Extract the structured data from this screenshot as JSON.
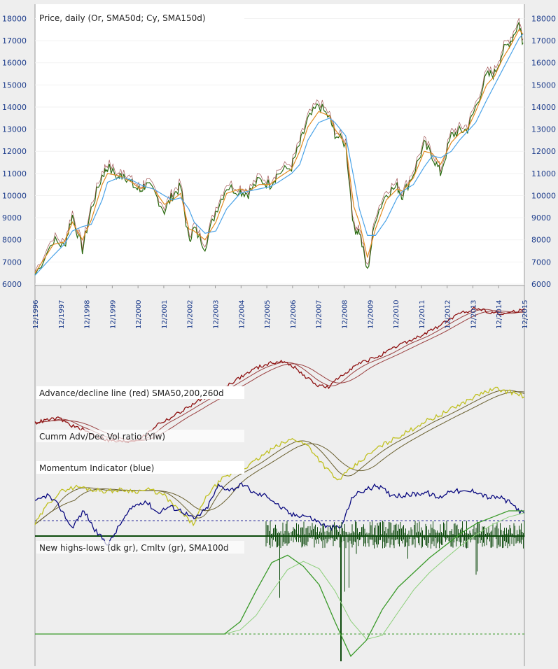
{
  "chart_data": {
    "type": "line",
    "panels": [
      {
        "id": "price",
        "title": "Price, daily (Or, SMA50d; Cy, SMA150d)",
        "yticks": [
          "6000",
          "7000",
          "8000",
          "9000",
          "10000",
          "11000",
          "12000",
          "13000",
          "14000",
          "15000",
          "16000",
          "17000",
          "18000"
        ],
        "ylim": [
          6000,
          18300
        ],
        "x": [
          1996.92,
          1997.6,
          1998.0,
          1998.3,
          1998.67,
          1999.0,
          1999.4,
          1999.6,
          2000.0,
          2000.2,
          2000.5,
          2000.8,
          2001.0,
          2001.3,
          2001.7,
          2002.0,
          2002.3,
          2002.6,
          2002.8,
          2003.2,
          2003.6,
          2004.0,
          2004.5,
          2004.8,
          2005.2,
          2005.6,
          2005.9,
          2006.4,
          2006.7,
          2007.0,
          2007.4,
          2007.8,
          2008.0,
          2008.4,
          2008.7,
          2008.9,
          2009.2,
          2009.5,
          2009.9,
          2010.3,
          2010.5,
          2010.9,
          2011.3,
          2011.6,
          2011.9,
          2012.3,
          2012.6,
          2012.9,
          2013.2,
          2013.6,
          2013.9,
          2014.2,
          2014.5,
          2014.8,
          2014.95
        ],
        "series": [
          {
            "name": "Price",
            "color": "#2a6a10",
            "values": [
              6400,
              8000,
              7700,
              9100,
              7550,
              9400,
              10900,
              11300,
              10800,
              11000,
              10500,
              10200,
              10500,
              10200,
              9300,
              10000,
              10400,
              8000,
              8500,
              7700,
              9300,
              10400,
              10200,
              10100,
              10700,
              10500,
              11000,
              11300,
              12300,
              13400,
              14100,
              13500,
              12800,
              12300,
              8500,
              8400,
              6550,
              9000,
              10100,
              10400,
              10000,
              11000,
              12300,
              11800,
              11000,
              12700,
              12900,
              13000,
              14000,
              15400,
              15500,
              16500,
              17000,
              17800,
              16900
            ]
          },
          {
            "name": "SMA50d",
            "color": "#e08a20",
            "values": [
              6500,
              7800,
              7900,
              8800,
              8000,
              8900,
              10500,
              11000,
              10900,
              10800,
              10600,
              10300,
              10400,
              10300,
              9600,
              9800,
              10100,
              8500,
              8400,
              8000,
              8800,
              10100,
              10300,
              10200,
              10500,
              10500,
              10800,
              11200,
              12000,
              13100,
              13800,
              13600,
              13000,
              12300,
              9500,
              8800,
              7200,
              8500,
              9800,
              10300,
              10200,
              10800,
              12000,
              11900,
              11400,
              12400,
              12800,
              13000,
              13800,
              15000,
              15400,
              16200,
              16800,
              17500,
              17300
            ]
          },
          {
            "name": "SMA150d",
            "color": "#4aa3e8",
            "values": [
              6400,
              7300,
              7800,
              8400,
              8600,
              8700,
              9800,
              10600,
              10800,
              10800,
              10700,
              10500,
              10400,
              10300,
              10000,
              9800,
              9900,
              9400,
              8800,
              8300,
              8400,
              9400,
              10100,
              10200,
              10300,
              10400,
              10600,
              11000,
              11400,
              12500,
              13300,
              13500,
              13300,
              12700,
              10800,
              9400,
              8200,
              8200,
              8900,
              9900,
              10200,
              10500,
              11300,
              11800,
              11700,
              12000,
              12500,
              12900,
              13300,
              14300,
              15000,
              15700,
              16400,
              17100,
              17300
            ]
          }
        ]
      },
      {
        "id": "adline",
        "title": "Advance/decline line (red) SMA50,200,260d",
        "series": [
          {
            "name": "A/D line",
            "color": "#8e1010",
            "values": [
              0.18,
              0.2,
              0.21,
              0.16,
              0.13,
              0.09,
              0.06,
              0.05,
              0.06,
              0.09,
              0.17,
              0.21,
              0.26,
              0.31,
              0.36,
              0.4,
              0.45,
              0.5,
              0.55,
              0.58,
              0.6,
              0.57,
              0.5,
              0.44,
              0.42,
              0.5,
              0.56,
              0.6,
              0.63,
              0.67,
              0.72,
              0.75,
              0.79,
              0.84,
              0.89,
              0.93,
              0.96,
              0.94,
              0.92,
              0.93,
              0.96
            ]
          }
        ]
      },
      {
        "id": "voratio",
        "title": "Cumm Adv/Dec Vol ratio (Ylw)",
        "series": [
          {
            "name": "Vol ratio",
            "color": "#c0c020",
            "values": [
              0.05,
              0.2,
              0.28,
              0.3,
              0.28,
              0.27,
              0.28,
              0.27,
              0.28,
              0.24,
              0.14,
              0.05,
              0.25,
              0.35,
              0.4,
              0.45,
              0.52,
              0.58,
              0.62,
              0.57,
              0.45,
              0.34,
              0.42,
              0.5,
              0.57,
              0.62,
              0.67,
              0.73,
              0.77,
              0.82,
              0.87,
              0.92,
              0.95,
              0.93,
              0.9
            ]
          }
        ]
      },
      {
        "id": "momentum",
        "title": "Momentum Indicator (blue)",
        "series": [
          {
            "name": "Momentum",
            "color": "#0a0a80",
            "values": [
              0.6,
              0.69,
              0.55,
              0.3,
              0.5,
              0.25,
              0.1,
              0.35,
              0.55,
              0.62,
              0.48,
              0.55,
              0.5,
              0.4,
              0.52,
              0.8,
              0.75,
              0.82,
              0.7,
              0.68,
              0.55,
              0.45,
              0.45,
              0.38,
              0.3,
              0.3,
              0.68,
              0.75,
              0.8,
              0.7,
              0.68,
              0.7,
              0.72,
              0.65,
              0.75,
              0.72,
              0.74,
              0.66,
              0.66,
              0.58,
              0.45
            ]
          }
        ]
      },
      {
        "id": "hilo",
        "title": "New highs-lows (dk gr), Cmltv (gr), SMA100d",
        "series": [
          {
            "name": "Cumulative",
            "color": "#3a9a2a",
            "values": [
              0,
              0,
              0,
              0,
              0,
              0,
              0,
              0,
              0,
              0,
              0,
              0,
              0,
              0.1,
              0.35,
              0.58,
              0.64,
              0.55,
              0.4,
              0.1,
              -0.18,
              -0.05,
              0.2,
              0.38,
              0.5,
              0.62,
              0.72,
              0.82,
              0.9,
              0.95,
              1.0,
              1.0
            ]
          }
        ]
      }
    ],
    "xticks": [
      "12/1996",
      "12/1997",
      "12/1998",
      "12/1999",
      "12/2000",
      "12/2001",
      "12/2002",
      "12/2003",
      "12/2004",
      "12/2005",
      "12/2006",
      "12/2007",
      "12/2008",
      "12/2009",
      "12/2010",
      "12/2011",
      "12/2012",
      "12/2013",
      "12/2014",
      "12/2015"
    ]
  }
}
